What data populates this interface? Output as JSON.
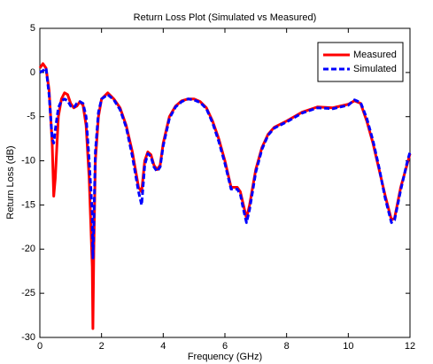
{
  "chart_data": {
    "type": "line",
    "title": "Return Loss Plot (Simulated vs Measured)",
    "x_label": "Frequency (GHz)",
    "y_label": "Return Loss (dB)",
    "x": [
      0,
      0.1,
      0.2,
      0.3,
      0.4,
      0.45,
      0.5,
      0.6,
      0.7,
      0.8,
      0.9,
      1.0,
      1.1,
      1.2,
      1.3,
      1.4,
      1.5,
      1.6,
      1.7,
      1.72,
      1.75,
      1.8,
      1.9,
      2.0,
      2.2,
      2.4,
      2.6,
      2.8,
      3.0,
      3.2,
      3.3,
      3.4,
      3.5,
      3.6,
      3.7,
      3.8,
      3.9,
      4.0,
      4.2,
      4.4,
      4.6,
      4.8,
      5.0,
      5.2,
      5.4,
      5.6,
      5.8,
      6.0,
      6.2,
      6.4,
      6.5,
      6.6,
      6.7,
      6.8,
      7.0,
      7.2,
      7.4,
      7.6,
      8.0,
      8.5,
      9.0,
      9.5,
      10.0,
      10.2,
      10.4,
      10.6,
      10.8,
      11.0,
      11.2,
      11.4,
      11.5,
      11.7,
      11.9,
      12.0
    ],
    "series": [
      {
        "name": "Measured",
        "color": "#ff0000",
        "style": "solid",
        "values": [
          0.5,
          1,
          0.5,
          -2,
          -8,
          -14,
          -12,
          -5,
          -3,
          -2.3,
          -2.5,
          -3.5,
          -4,
          -3.8,
          -3.3,
          -3.7,
          -6,
          -12,
          -22,
          -29,
          -20,
          -10,
          -5,
          -3,
          -2.3,
          -3,
          -4,
          -6,
          -9,
          -13,
          -13.5,
          -10,
          -9,
          -9.3,
          -10.5,
          -11,
          -10.5,
          -8,
          -5,
          -3.8,
          -3.2,
          -3,
          -3,
          -3.3,
          -4,
          -5.5,
          -7.5,
          -10,
          -13,
          -13,
          -13.5,
          -15,
          -16.5,
          -15,
          -11,
          -8.5,
          -7,
          -6.2,
          -5.5,
          -4.5,
          -3.9,
          -4,
          -3.6,
          -3.2,
          -3.5,
          -5.5,
          -8,
          -11,
          -14,
          -16.7,
          -16.5,
          -13,
          -10.5,
          -9.2
        ]
      },
      {
        "name": "Simulated",
        "color": "#0000ff",
        "style": "dashed",
        "values": [
          0,
          0.2,
          0.5,
          -2.5,
          -7.5,
          -8,
          -6.5,
          -4,
          -3.2,
          -3,
          -3.2,
          -3.8,
          -4,
          -3.5,
          -3.3,
          -3.5,
          -5,
          -10,
          -16,
          -21,
          -17,
          -9,
          -4.5,
          -3,
          -2.5,
          -3.1,
          -4.2,
          -6.2,
          -9.5,
          -13.5,
          -15,
          -10.5,
          -9.2,
          -9.5,
          -10.7,
          -11.2,
          -10.7,
          -8.3,
          -5.2,
          -3.9,
          -3.3,
          -3,
          -3.1,
          -3.4,
          -4.1,
          -5.7,
          -7.8,
          -10.3,
          -13.2,
          -13.2,
          -13.8,
          -15.5,
          -17,
          -15.5,
          -11.3,
          -8.7,
          -7.1,
          -6.3,
          -5.6,
          -4.6,
          -4,
          -4.1,
          -3.7,
          -3.1,
          -3.4,
          -5.2,
          -7.7,
          -10.8,
          -14.3,
          -17,
          -16.7,
          -13.3,
          -10.3,
          -9
        ]
      }
    ],
    "xlim": [
      0,
      12
    ],
    "xticks": [
      0,
      2,
      4,
      6,
      8,
      10,
      12
    ],
    "ylim": [
      -30,
      5
    ],
    "yticks": [
      -30,
      -25,
      -20,
      -15,
      -10,
      -5,
      0,
      5
    ],
    "legend": "upper right"
  }
}
